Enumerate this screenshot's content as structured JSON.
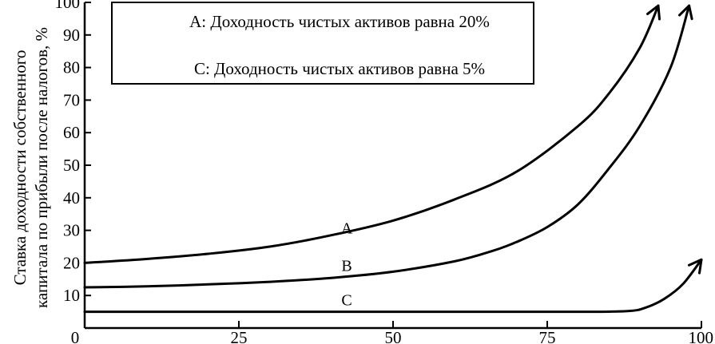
{
  "chart_data": {
    "type": "line",
    "title": "",
    "xlabel": "",
    "ylabel_lines": [
      "Ставка доходности собственного",
      "капитала по прибыли после налогов, %"
    ],
    "xlim": [
      0,
      100
    ],
    "ylim": [
      0,
      100
    ],
    "x_ticks": [
      0,
      25,
      50,
      75,
      100
    ],
    "y_ticks": [
      10,
      20,
      30,
      40,
      50,
      60,
      70,
      80,
      90,
      100
    ],
    "grid": false,
    "legend": {
      "placement": "top-left",
      "entries": [
        "A: Доходность чистых активов равна  20%",
        "C: Доходность чистых активов равна   5%"
      ]
    },
    "series": [
      {
        "name": "A",
        "color": "#000000",
        "arrow_end": true,
        "x": [
          0,
          10,
          20,
          30,
          40,
          50,
          60,
          70,
          80,
          85,
          90,
          93
        ],
        "y": [
          20,
          21.2,
          22.8,
          25,
          28.5,
          33,
          39.5,
          48,
          62,
          72,
          86,
          99
        ]
      },
      {
        "name": "B",
        "color": "#000000",
        "arrow_end": true,
        "x": [
          0,
          10,
          20,
          30,
          40,
          50,
          60,
          66,
          70,
          75,
          80,
          85,
          90,
          95,
          98
        ],
        "y": [
          12.5,
          12.8,
          13.4,
          14.2,
          15.4,
          17.3,
          20.5,
          23.6,
          26.4,
          31,
          38,
          49,
          62,
          80,
          99
        ]
      },
      {
        "name": "C",
        "color": "#000000",
        "arrow_end": true,
        "x": [
          0,
          20,
          40,
          60,
          80,
          88,
          91,
          94,
          97,
          100
        ],
        "y": [
          5,
          5,
          5,
          5,
          5,
          5.2,
          6.3,
          9,
          13.5,
          21
        ]
      }
    ],
    "curve_labels": [
      {
        "series": "A",
        "text": "A",
        "x": 42.5,
        "y": 29
      },
      {
        "series": "B",
        "text": "B",
        "x": 42.5,
        "y": 17.5
      },
      {
        "series": "C",
        "text": "C",
        "x": 42.5,
        "y": 7
      }
    ]
  }
}
